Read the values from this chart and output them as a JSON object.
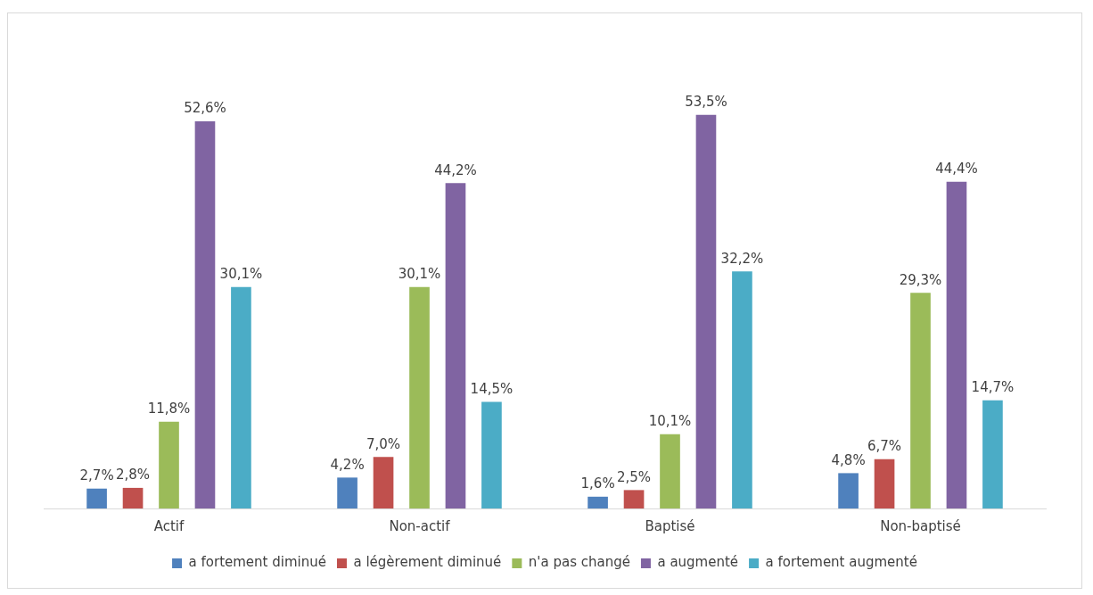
{
  "chart_data": {
    "type": "bar",
    "categories": [
      "Actif",
      "Non-actif",
      "Baptisé",
      "Non-baptisé"
    ],
    "series": [
      {
        "name": "a fortement diminué",
        "color": "#4f81bd",
        "values": [
          2.7,
          4.2,
          1.6,
          4.8
        ],
        "value_labels": [
          "2,7%",
          "4,2%",
          "1,6%",
          "4,8%"
        ]
      },
      {
        "name": "a légèrement diminué",
        "color": "#c0504d",
        "values": [
          2.8,
          7.0,
          2.5,
          6.7
        ],
        "value_labels": [
          "2,8%",
          "7,0%",
          "2,5%",
          "6,7%"
        ]
      },
      {
        "name": "n'a pas changé",
        "color": "#9bbb59",
        "values": [
          11.8,
          30.1,
          10.1,
          29.3
        ],
        "value_labels": [
          "11,8%",
          "30,1%",
          "10,1%",
          "29,3%"
        ]
      },
      {
        "name": "a augmenté",
        "color": "#8064a2",
        "values": [
          52.6,
          44.2,
          53.5,
          44.4
        ],
        "value_labels": [
          "52,6%",
          "44,2%",
          "53,5%",
          "44,4%"
        ]
      },
      {
        "name": "a fortement augmenté",
        "color": "#4bacc6",
        "values": [
          30.1,
          14.5,
          32.2,
          14.7
        ],
        "value_labels": [
          "30,1%",
          "14,5%",
          "32,2%",
          "14,7%"
        ]
      }
    ],
    "grid": false,
    "legend": "bottom"
  }
}
